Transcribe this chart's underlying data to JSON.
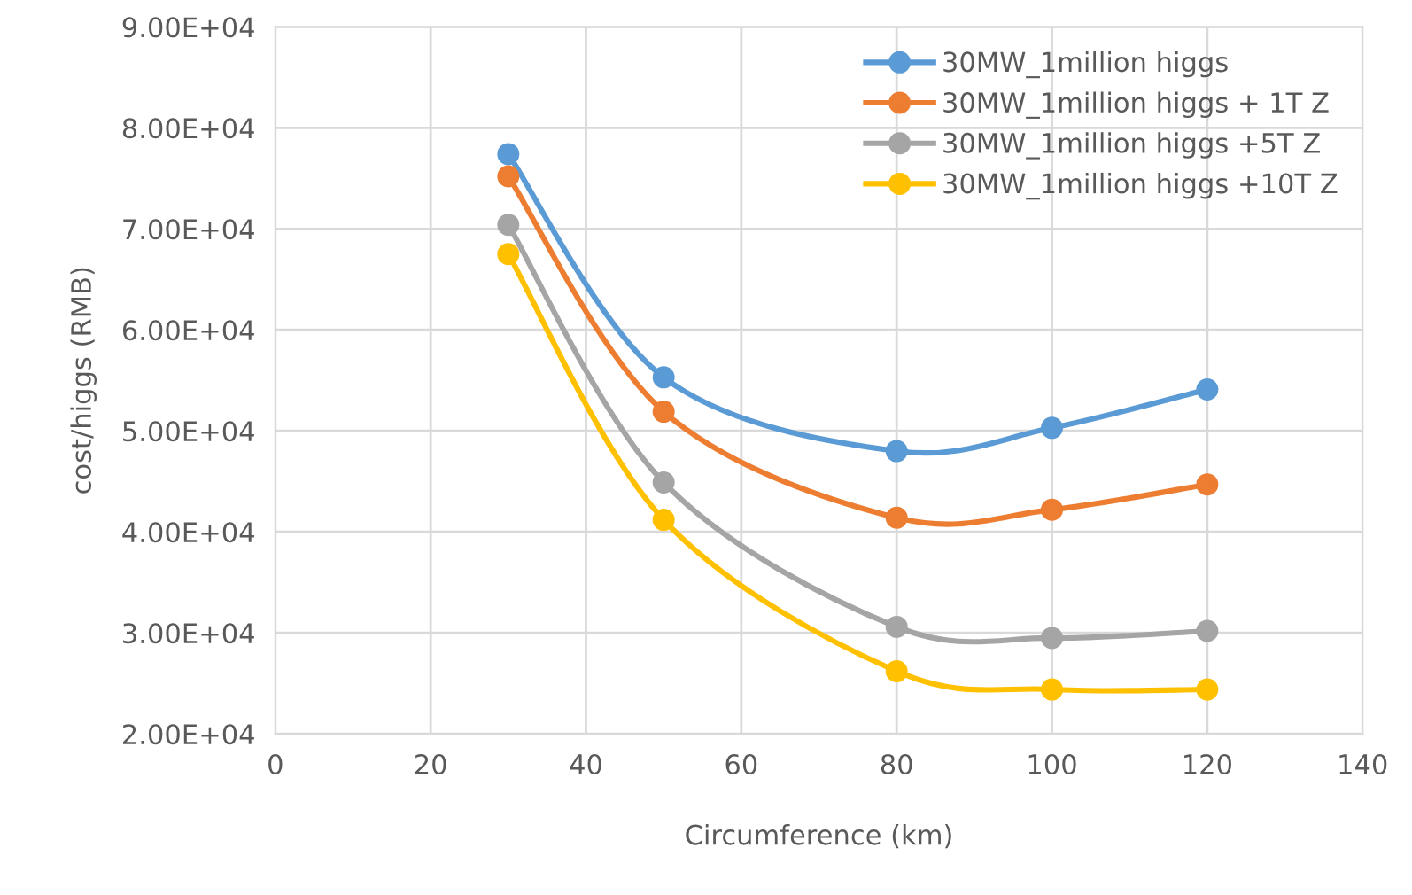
{
  "chart_data": {
    "type": "line",
    "xlabel": "Circumference (km)",
    "ylabel": "cost/higgs (RMB)",
    "xlim": [
      0,
      140
    ],
    "xticks": [
      0,
      20,
      40,
      60,
      80,
      100,
      120,
      140
    ],
    "ylim": [
      20000,
      90000
    ],
    "yticks": [
      {
        "value": 20000,
        "label": "2.00E+04"
      },
      {
        "value": 30000,
        "label": "3.00E+04"
      },
      {
        "value": 40000,
        "label": "4.00E+04"
      },
      {
        "value": 50000,
        "label": "5.00E+04"
      },
      {
        "value": 60000,
        "label": "6.00E+04"
      },
      {
        "value": 70000,
        "label": "7.00E+04"
      },
      {
        "value": 80000,
        "label": "8.00E+04"
      },
      {
        "value": 90000,
        "label": "9.00E+04"
      }
    ],
    "x": [
      30,
      50,
      80,
      100,
      120
    ],
    "grid": true,
    "legend": "top right",
    "marker": "circle",
    "line_style": "solid",
    "series": [
      {
        "name": "30MW_1million higgs",
        "color": "#5b9bd5",
        "values": [
          77400,
          55300,
          48000,
          50300,
          54100
        ]
      },
      {
        "name": "30MW_1million higgs + 1T Z",
        "color": "#ed7d31",
        "values": [
          75200,
          51900,
          41400,
          42200,
          44700
        ]
      },
      {
        "name": "30MW_1million higgs +5T Z",
        "color": "#a5a5a5",
        "values": [
          70400,
          44900,
          30600,
          29500,
          30200
        ]
      },
      {
        "name": "30MW_1million higgs +10T Z",
        "color": "#ffc000",
        "values": [
          67500,
          41200,
          26200,
          24400,
          24400
        ]
      }
    ]
  }
}
